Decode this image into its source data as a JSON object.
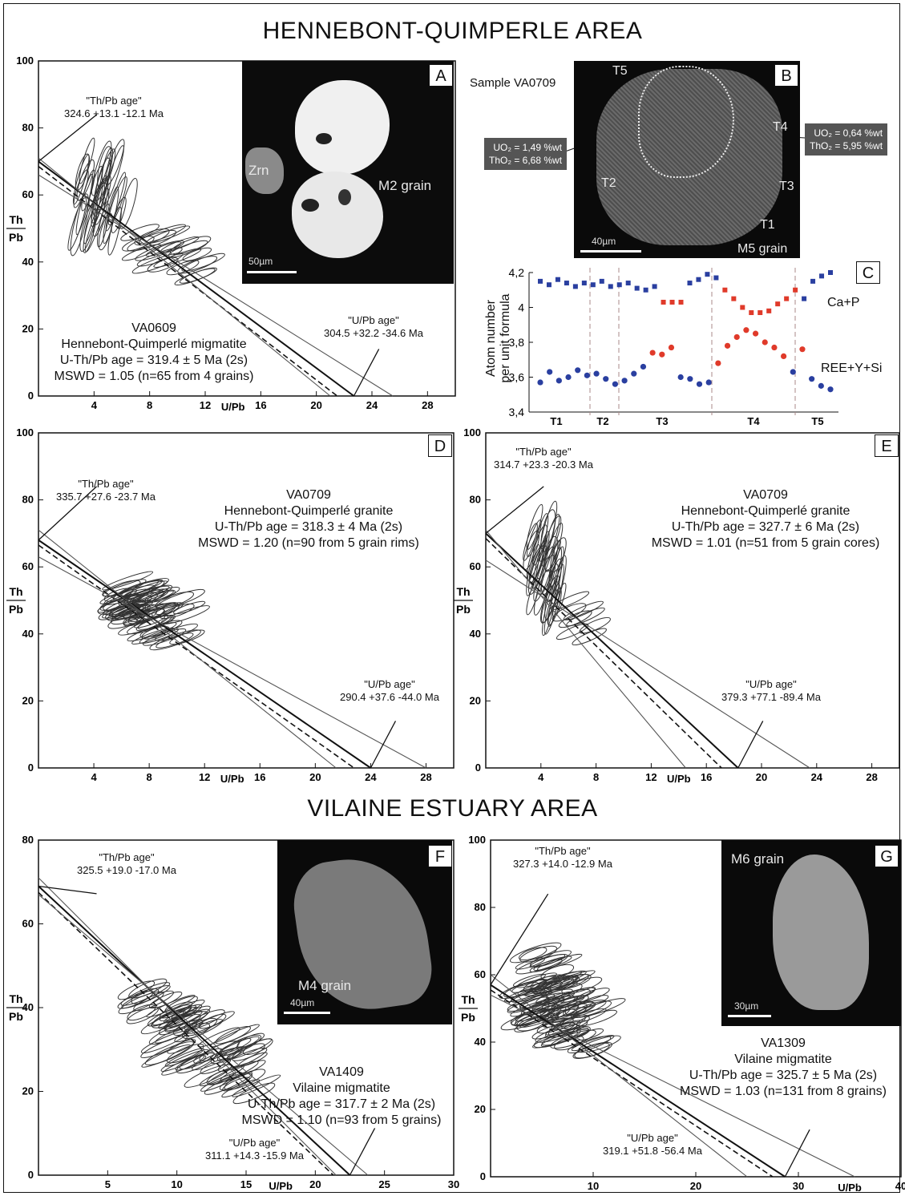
{
  "titles": {
    "top": "HENNEBONT-QUIMPERLE AREA",
    "bottom": "VILAINE ESTUARY AREA"
  },
  "common": {
    "ylab_top": "Th",
    "ylab_bot": "Pb",
    "xlab": "U/Pb"
  },
  "panels": {
    "A": {
      "letter": "A",
      "sample": "VA0609",
      "rock": "Hennebont-Quimperlé migmatite",
      "age": "U-Th/Pb age = 319.4 ± 5 Ma (2s)",
      "mswd": "MSWD = 1.05 (n=65 from 4 grains)",
      "thpb_label": "\"Th/Pb age\"",
      "thpb_value": "324.6 +13.1 -12.1 Ma",
      "upb_label": "\"U/Pb age\"",
      "upb_value": "304.5 +32.2 -34.6 Ma",
      "grain": "M2 grain",
      "zrn": "Zrn",
      "scale": "50µm"
    },
    "B": {
      "letter": "B",
      "sample": "Sample VA0709",
      "grain": "M5 grain",
      "scale": "40µm",
      "traverses": [
        "T5",
        "T4",
        "T3",
        "T2",
        "T1"
      ],
      "ox_left_1": "UO₂ = 1,49 %wt",
      "ox_left_2": "ThO₂ = 6,68 %wt",
      "ox_right_1": "UO₂ = 0,64 %wt",
      "ox_right_2": "ThO₂ = 5,95 %wt"
    },
    "C": {
      "letter": "C",
      "ylabel_1": "Atom number",
      "ylabel_2": "per unit formula",
      "series_top": "Ca+P",
      "series_bot": "REE+Y+Si"
    },
    "D": {
      "letter": "D",
      "sample": "VA0709",
      "rock": "Hennebont-Quimperlé granite",
      "age": "U-Th/Pb age = 318.3 ± 4 Ma (2s)",
      "mswd": "MSWD = 1.20 (n=90 from 5 grain rims)",
      "thpb_label": "\"Th/Pb age\"",
      "thpb_value": "335.7 +27.6 -23.7 Ma",
      "upb_label": "\"U/Pb age\"",
      "upb_value": "290.4 +37.6 -44.0 Ma"
    },
    "E": {
      "letter": "E",
      "sample": "VA0709",
      "rock": "Hennebont-Quimperlé granite",
      "age": "U-Th/Pb age = 327.7 ± 6 Ma (2s)",
      "mswd": "MSWD = 1.01 (n=51 from 5 grain cores)",
      "thpb_label": "\"Th/Pb age\"",
      "thpb_value": "314.7 +23.3 -20.3 Ma",
      "upb_label": "\"U/Pb age\"",
      "upb_value": "379.3 +77.1 -89.4 Ma"
    },
    "F": {
      "letter": "F",
      "sample": "VA1409",
      "rock": "Vilaine migmatite",
      "age": "U-Th/Pb age = 317.7 ± 2 Ma (2s)",
      "mswd": "MSWD = 1.10 (n=93 from 5 grains)",
      "thpb_label": "\"Th/Pb age\"",
      "thpb_value": "325.5 +19.0 -17.0 Ma",
      "upb_label": "\"U/Pb age\"",
      "upb_value": "311.1 +14.3 -15.9 Ma",
      "grain": "M4 grain",
      "scale": "40µm"
    },
    "G": {
      "letter": "G",
      "sample": "VA1309",
      "rock": "Vilaine migmatite",
      "age": "U-Th/Pb age = 325.7 ± 5 Ma (2s)",
      "mswd": "MSWD = 1.03 (n=131 from 8 grains)",
      "thpb_label": "\"Th/Pb age\"",
      "thpb_value": "327.3 +14.0 -12.9 Ma",
      "upb_label": "\"U/Pb age\"",
      "upb_value": "319.1 +51.8 -56.4 Ma",
      "grain": "M6 grain",
      "scale": "30µm"
    }
  },
  "chart_data": [
    {
      "id": "A",
      "type": "scatter",
      "subtype": "isochron-ellipses",
      "xlabel": "U/Pb",
      "ylabel": "Th/Pb",
      "xlim": [
        0,
        30
      ],
      "ylim": [
        0,
        100
      ],
      "xticks": [
        4,
        8,
        12,
        16,
        20,
        24,
        28
      ],
      "yticks": [
        0,
        20,
        40,
        60,
        80,
        100
      ],
      "lines": {
        "y_intercept": 70,
        "x_intercept": 22.7,
        "bound_a": [
          71,
          21
        ],
        "bound_b": [
          66,
          25.5
        ]
      },
      "clusters": [
        {
          "x_center": 3.6,
          "y_center": 60,
          "count": 18,
          "spread_x": 1.0,
          "spread_y": 11
        },
        {
          "x_center": 5.5,
          "y_center": 60,
          "count": 16,
          "spread_x": 1.0,
          "spread_y": 12
        },
        {
          "x_center": 9.5,
          "y_center": 43,
          "count": 22,
          "spread_x": 2.5,
          "spread_y": 5
        }
      ]
    },
    {
      "id": "C",
      "type": "scatter",
      "ylabel": "Atom number per unit formula",
      "ylim": [
        3.4,
        4.2
      ],
      "yticks": [
        "3,4",
        "3,6",
        "3,8",
        "4",
        "4,2"
      ],
      "xcats": [
        "T1",
        "T2",
        "T3",
        "T4",
        "T5"
      ],
      "series": [
        {
          "name": "Ca+P",
          "values": [
            4.15,
            4.13,
            4.16,
            4.14,
            4.12,
            4.14,
            4.13,
            4.15,
            4.12,
            4.13,
            4.14,
            4.11,
            4.1,
            4.12,
            4.03,
            4.03,
            4.03,
            4.14,
            4.16,
            4.19,
            4.17,
            4.1,
            4.05,
            4.0,
            3.97,
            3.97,
            3.98,
            4.02,
            4.05,
            4.1,
            4.05,
            4.15,
            4.18,
            4.2
          ]
        },
        {
          "name": "REE+Y+Si",
          "values": [
            3.57,
            3.63,
            3.58,
            3.6,
            3.64,
            3.61,
            3.62,
            3.59,
            3.56,
            3.58,
            3.62,
            3.66,
            3.74,
            3.73,
            3.77,
            3.6,
            3.59,
            3.56,
            3.57,
            3.68,
            3.78,
            3.83,
            3.87,
            3.85,
            3.8,
            3.77,
            3.72,
            3.63,
            3.76,
            3.59,
            3.55,
            3.53
          ]
        }
      ]
    },
    {
      "id": "D",
      "type": "scatter",
      "subtype": "isochron-ellipses",
      "xlabel": "U/Pb",
      "ylabel": "Th/Pb",
      "xlim": [
        0,
        30
      ],
      "ylim": [
        0,
        100
      ],
      "xticks": [
        4,
        8,
        12,
        16,
        20,
        24,
        28
      ],
      "yticks": [
        0,
        20,
        40,
        60,
        80,
        100
      ],
      "lines": {
        "y_intercept": 68,
        "x_intercept": 24,
        "bound_a": [
          71,
          21.5
        ],
        "bound_b": [
          63,
          28
        ]
      },
      "clusters": [
        {
          "x_center": 8.5,
          "y_center": 46,
          "count": 45,
          "spread_x": 2.6,
          "spread_y": 7
        },
        {
          "x_center": 7.0,
          "y_center": 50,
          "count": 25,
          "spread_x": 1.5,
          "spread_y": 6
        }
      ]
    },
    {
      "id": "E",
      "type": "scatter",
      "subtype": "isochron-ellipses",
      "xlabel": "U/Pb",
      "ylabel": "Th/Pb",
      "xlim": [
        0,
        30
      ],
      "ylim": [
        0,
        100
      ],
      "xticks": [
        4,
        8,
        12,
        16,
        20,
        24,
        28
      ],
      "yticks": [
        0,
        20,
        40,
        60,
        80,
        100
      ],
      "lines": {
        "y_intercept": 70,
        "x_intercept": 18.3,
        "bound_a": [
          71,
          14.5
        ],
        "bound_b": [
          62,
          23.5
        ]
      },
      "clusters": [
        {
          "x_center": 4.2,
          "y_center": 60,
          "count": 35,
          "spread_x": 1.2,
          "spread_y": 12
        },
        {
          "x_center": 7.0,
          "y_center": 45,
          "count": 8,
          "spread_x": 1.0,
          "spread_y": 6
        }
      ]
    },
    {
      "id": "F",
      "type": "scatter",
      "subtype": "isochron-ellipses",
      "xlabel": "U/Pb",
      "ylabel": "Th/Pb",
      "xlim": [
        0,
        30
      ],
      "ylim": [
        0,
        80
      ],
      "xticks": [
        5,
        10,
        15,
        20,
        25,
        30
      ],
      "yticks": [
        0,
        20,
        40,
        60,
        80
      ],
      "lines": {
        "y_intercept": 69,
        "x_intercept": 22.5,
        "bound_a": [
          71,
          21.5
        ],
        "bound_b": [
          67,
          23.8
        ]
      },
      "clusters": [
        {
          "x_center": 12.5,
          "y_center": 30,
          "count": 60,
          "spread_x": 3.5,
          "spread_y": 7
        },
        {
          "x_center": 9.0,
          "y_center": 39,
          "count": 20,
          "spread_x": 2.0,
          "spread_y": 4
        }
      ]
    },
    {
      "id": "G",
      "type": "scatter",
      "subtype": "isochron-ellipses",
      "xlabel": "U/Pb",
      "ylabel": "Th/Pb",
      "xlim": [
        0,
        40
      ],
      "ylim": [
        0,
        100
      ],
      "xticks": [
        10,
        20,
        30,
        40
      ],
      "yticks": [
        0,
        20,
        40,
        60,
        80,
        100
      ],
      "lines": {
        "y_intercept": 57,
        "x_intercept": 28.7,
        "bound_a": [
          60,
          25
        ],
        "bound_b": [
          54,
          35.5
        ]
      },
      "clusters": [
        {
          "x_center": 5.5,
          "y_center": 55,
          "count": 60,
          "spread_x": 2.5,
          "spread_y": 12
        },
        {
          "x_center": 8.5,
          "y_center": 48,
          "count": 40,
          "spread_x": 2.5,
          "spread_y": 10
        }
      ]
    }
  ]
}
